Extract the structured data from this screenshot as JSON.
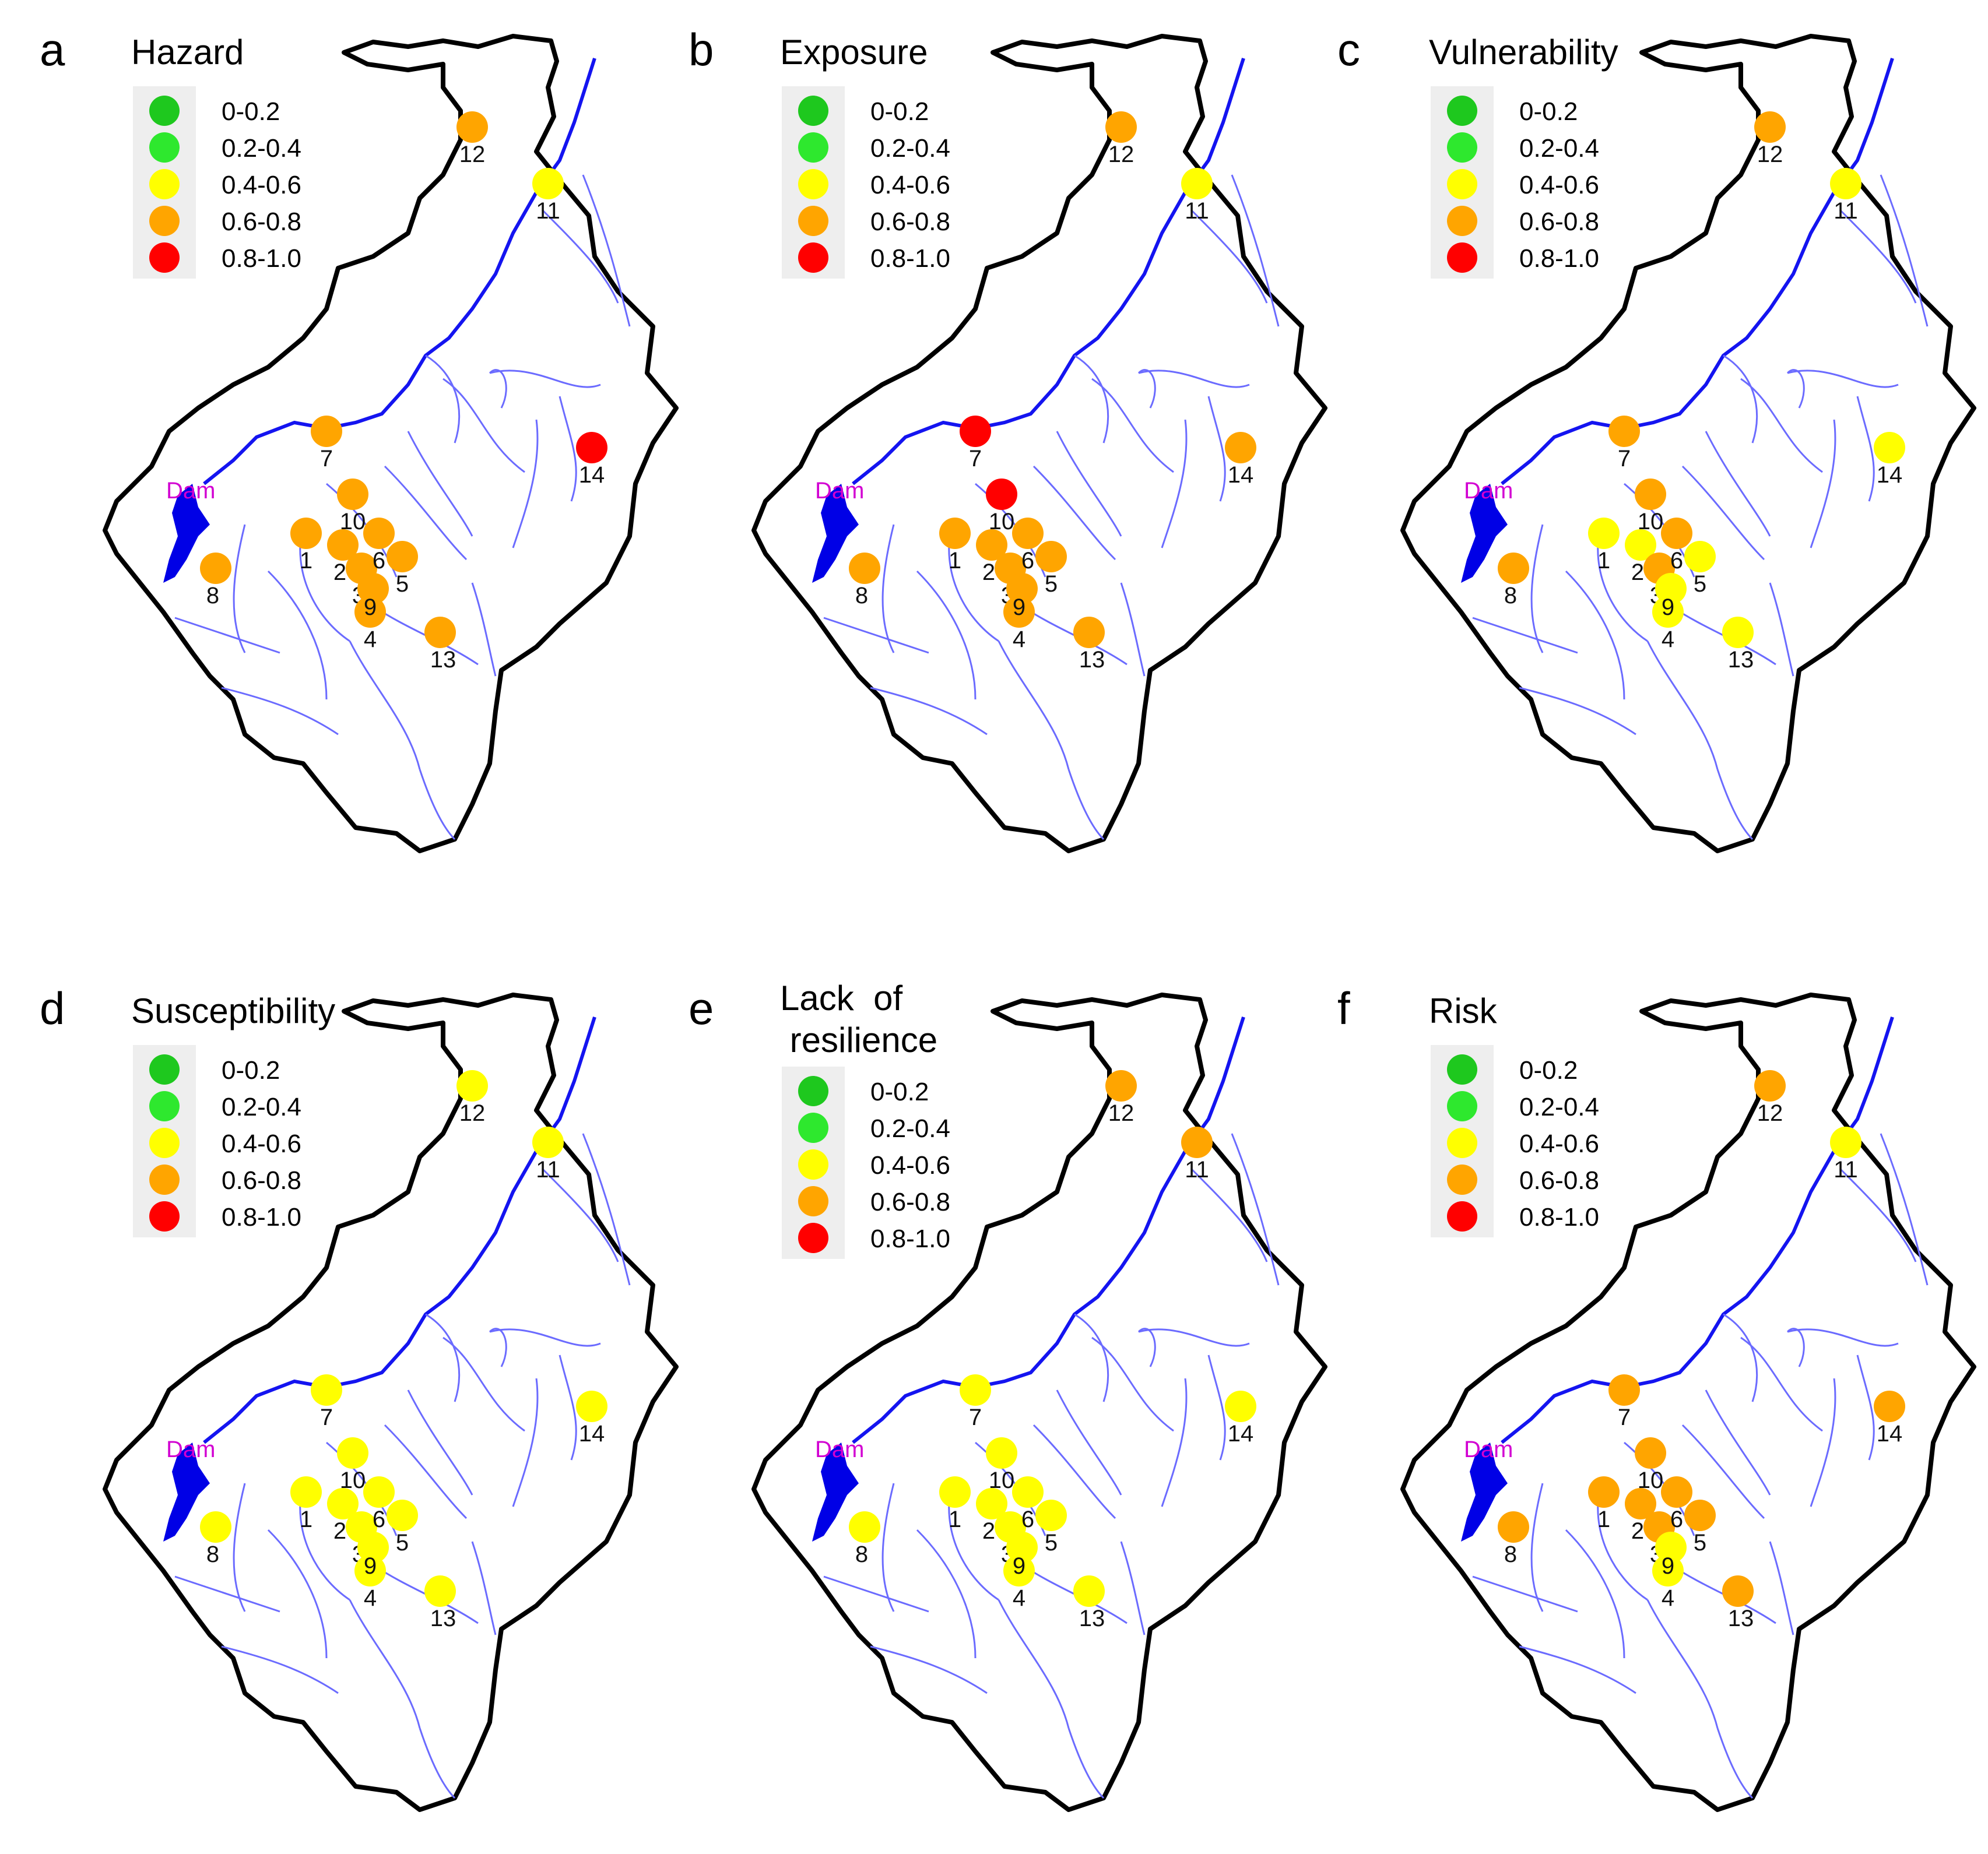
{
  "colors": {
    "boundary": "#000000",
    "main_river": "#1414f0",
    "tributary": "#6b6bff",
    "dam_water": "#0000e6",
    "dam_label": "#d200d2",
    "legend_bg": "#eeeeee"
  },
  "legend": {
    "classes": [
      {
        "label": "0-0.2",
        "color": "#1ec81e"
      },
      {
        "label": "0.2-0.4",
        "color": "#2ee82e"
      },
      {
        "label": "0.4-0.6",
        "color": "#ffff00"
      },
      {
        "label": "0.6-0.8",
        "color": "#ffa500"
      },
      {
        "label": "0.8-1.0",
        "color": "#ff0000"
      }
    ]
  },
  "dam": {
    "label": "Dam"
  },
  "site_ids": [
    "1",
    "2",
    "3",
    "4",
    "5",
    "6",
    "7",
    "8",
    "9",
    "10",
    "11",
    "12",
    "13",
    "14"
  ],
  "panels": [
    {
      "letter": "a",
      "title": [
        "Hazard"
      ],
      "classes": {
        "1": 3,
        "2": 3,
        "3": 3,
        "4": 3,
        "5": 3,
        "6": 3,
        "7": 3,
        "8": 3,
        "9": 3,
        "10": 3,
        "11": 2,
        "12": 3,
        "13": 3,
        "14": 4
      }
    },
    {
      "letter": "b",
      "title": [
        "Exposure"
      ],
      "classes": {
        "1": 3,
        "2": 3,
        "3": 3,
        "4": 3,
        "5": 3,
        "6": 3,
        "7": 4,
        "8": 3,
        "9": 3,
        "10": 4,
        "11": 2,
        "12": 3,
        "13": 3,
        "14": 3
      }
    },
    {
      "letter": "c",
      "title": [
        "Vulnerability"
      ],
      "classes": {
        "1": 2,
        "2": 2,
        "3": 3,
        "4": 2,
        "5": 2,
        "6": 3,
        "7": 3,
        "8": 3,
        "9": 2,
        "10": 3,
        "11": 2,
        "12": 3,
        "13": 2,
        "14": 2
      }
    },
    {
      "letter": "d",
      "title": [
        "Susceptibility"
      ],
      "classes": {
        "1": 2,
        "2": 2,
        "3": 2,
        "4": 2,
        "5": 2,
        "6": 2,
        "7": 2,
        "8": 2,
        "9": 2,
        "10": 2,
        "11": 2,
        "12": 2,
        "13": 2,
        "14": 2
      }
    },
    {
      "letter": "e",
      "title": [
        "Lack  of",
        " resilience"
      ],
      "classes": {
        "1": 2,
        "2": 2,
        "3": 2,
        "4": 2,
        "5": 2,
        "6": 2,
        "7": 2,
        "8": 2,
        "9": 2,
        "10": 2,
        "11": 3,
        "12": 3,
        "13": 2,
        "14": 2
      }
    },
    {
      "letter": "f",
      "title": [
        "Risk"
      ],
      "classes": {
        "1": 3,
        "2": 3,
        "3": 3,
        "4": 2,
        "5": 3,
        "6": 3,
        "7": 3,
        "8": 3,
        "9": 2,
        "10": 3,
        "11": 2,
        "12": 3,
        "13": 3,
        "14": 3
      }
    }
  ]
}
